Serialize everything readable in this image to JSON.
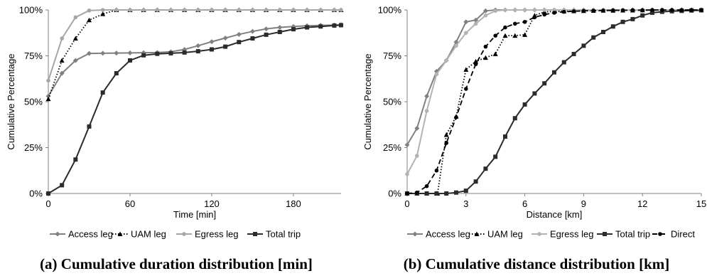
{
  "chart_data": [
    {
      "type": "line",
      "caption": "(a) Cumulative duration distribution [min]",
      "xlabel": "Time [min]",
      "ylabel": "Cumulative Percentage",
      "xlim": [
        0,
        215
      ],
      "ylim": [
        0,
        100
      ],
      "xticks": [
        0,
        60,
        120,
        180
      ],
      "xtick_labels": [
        "0",
        "60",
        "120",
        "180"
      ],
      "yticks": [
        0,
        25,
        50,
        75,
        100
      ],
      "ytick_labels": [
        "0%",
        "25%",
        "50%",
        "75%",
        "100%"
      ],
      "grid": false,
      "legend": "bottom",
      "series": [
        {
          "name": "Access leg",
          "color": "#808080",
          "dash": "solid",
          "marker": "diamond",
          "x": [
            0,
            10,
            20,
            30,
            40,
            50,
            60,
            70,
            80,
            90,
            100,
            110,
            120,
            130,
            140,
            150,
            160,
            170,
            180,
            190,
            200,
            210,
            215
          ],
          "y": [
            53,
            65.5,
            72.5,
            76.3,
            76.4,
            76.5,
            76.6,
            76.7,
            76.8,
            77.2,
            78.5,
            80.5,
            82.7,
            84.7,
            86.7,
            88.3,
            89.7,
            90.5,
            91,
            91.4,
            91.6,
            91.8,
            92
          ]
        },
        {
          "name": "UAM leg",
          "color": "#000000",
          "dash": "dotted",
          "marker": "triangle",
          "x": [
            0,
            10,
            20,
            30,
            40,
            50,
            60,
            70,
            80,
            90,
            100,
            110,
            120,
            130,
            140,
            150,
            160,
            170,
            180,
            190,
            200,
            210,
            215
          ],
          "y": [
            51.5,
            72.5,
            84.5,
            94.5,
            97.8,
            100,
            100,
            100,
            100,
            100,
            100,
            100,
            100,
            100,
            100,
            100,
            100,
            100,
            100,
            100,
            100,
            100,
            100
          ]
        },
        {
          "name": "Egress leg",
          "color": "#a6a6a6",
          "dash": "solid",
          "marker": "circle",
          "x": [
            0,
            10,
            20,
            30,
            40,
            50,
            60,
            70,
            80,
            90,
            100,
            110,
            120,
            130,
            140,
            150,
            160,
            170,
            180,
            190,
            200,
            210,
            215
          ],
          "y": [
            61.5,
            84.5,
            96,
            99.7,
            100,
            100,
            100,
            100,
            100,
            100,
            100,
            100,
            100,
            100,
            100,
            100,
            100,
            100,
            100,
            100,
            100,
            100,
            100
          ]
        },
        {
          "name": "Total trip",
          "color": "#2b2b2b",
          "dash": "solid",
          "marker": "square",
          "x": [
            0,
            10,
            20,
            30,
            40,
            50,
            60,
            70,
            80,
            90,
            100,
            110,
            120,
            130,
            140,
            150,
            160,
            170,
            180,
            190,
            200,
            210,
            215
          ],
          "y": [
            0,
            4.5,
            18.5,
            36.5,
            55,
            65.5,
            72.5,
            75.3,
            76.1,
            76.4,
            76.8,
            77.5,
            78.5,
            80,
            82.5,
            84.5,
            86.5,
            88,
            89.5,
            90.5,
            91,
            91.5,
            91.7
          ]
        }
      ]
    },
    {
      "type": "line",
      "caption": "(b) Cumulative distance distribution [km]",
      "xlabel": "Distance [km]",
      "ylabel": "Cumulative Percentage",
      "xlim": [
        0,
        15
      ],
      "ylim": [
        0,
        100
      ],
      "xticks": [
        0,
        3,
        6,
        9,
        12,
        15
      ],
      "xtick_labels": [
        "0",
        "3",
        "6",
        "9",
        "12",
        "15"
      ],
      "yticks": [
        0,
        25,
        50,
        75,
        100
      ],
      "ytick_labels": [
        "0%",
        "25%",
        "50%",
        "75%",
        "100%"
      ],
      "grid": false,
      "legend": "bottom",
      "series": [
        {
          "name": "Access leg",
          "color": "#808080",
          "dash": "solid",
          "marker": "diamond",
          "x": [
            0,
            0.5,
            1,
            1.5,
            2,
            2.5,
            3,
            3.5,
            4,
            4.5,
            5,
            5.5,
            6,
            6.5,
            7,
            7.5,
            8,
            8.5,
            9,
            9.5,
            10,
            10.5,
            11,
            11.5,
            12,
            12.5,
            13,
            13.5,
            14,
            14.5,
            15
          ],
          "y": [
            26.5,
            35.5,
            53,
            66.5,
            72.5,
            82.5,
            93.5,
            94.5,
            99.5,
            100,
            100,
            100,
            100,
            100,
            100,
            100,
            100,
            100,
            100,
            100,
            100,
            100,
            100,
            100,
            100,
            100,
            100,
            100,
            100,
            100,
            100
          ]
        },
        {
          "name": "UAM leg",
          "color": "#000000",
          "dash": "dotted",
          "marker": "triangle",
          "x": [
            0,
            0.5,
            1,
            1.5,
            1.55,
            2,
            2.5,
            3,
            3.5,
            4,
            4.5,
            5,
            5.5,
            6,
            6.5,
            7,
            7.5,
            8,
            8.5,
            9,
            9.5,
            10,
            10.5,
            11,
            11.5,
            12,
            12.5,
            13,
            13.5,
            14,
            14.5,
            15
          ],
          "y": [
            0,
            0,
            0,
            0,
            0,
            32,
            42,
            67.5,
            72,
            74,
            76,
            86,
            86,
            86.5,
            97,
            99,
            99.2,
            99.3,
            99.4,
            99.5,
            99.6,
            99.7,
            99.7,
            99.8,
            99.8,
            99.9,
            99.9,
            99.9,
            100,
            100,
            100,
            100
          ]
        },
        {
          "name": "Egress leg",
          "color": "#b3b3b3",
          "dash": "solid",
          "marker": "circle",
          "x": [
            0,
            0.5,
            1,
            1.5,
            2,
            2.5,
            3,
            3.5,
            4,
            4.5,
            5,
            5.5,
            6,
            6.5,
            7,
            7.5,
            8,
            8.5,
            9,
            9.5,
            10,
            10.5,
            11,
            11.5,
            12,
            12.5,
            13,
            13.5,
            14,
            14.5,
            15
          ],
          "y": [
            10.5,
            20.5,
            45,
            65,
            72.5,
            80.5,
            87.5,
            92.5,
            97,
            99.5,
            100,
            100,
            100,
            100,
            100,
            100,
            100,
            100,
            100,
            100,
            100,
            100,
            100,
            100,
            100,
            100,
            100,
            100,
            100,
            100,
            100
          ]
        },
        {
          "name": "Total trip",
          "color": "#2b2b2b",
          "dash": "solid",
          "marker": "square",
          "x": [
            0,
            0.5,
            1,
            1.5,
            2,
            2.5,
            3,
            3.5,
            4,
            4.5,
            5,
            5.5,
            6,
            6.5,
            7,
            7.5,
            8,
            8.5,
            9,
            9.5,
            10,
            10.5,
            11,
            11.5,
            12,
            12.5,
            13,
            13.5,
            14,
            14.5,
            15
          ],
          "y": [
            0,
            0,
            0,
            0,
            0,
            0.5,
            1.5,
            6.5,
            13.5,
            20,
            31,
            41,
            48.5,
            54.5,
            60,
            66,
            71.5,
            76,
            80.5,
            85,
            88,
            91,
            93.5,
            95,
            97,
            98.5,
            99,
            99.3,
            99.5,
            99.7,
            99.8
          ]
        },
        {
          "name": "Direct",
          "color": "#000000",
          "dash": "dashed",
          "marker": "circle",
          "x": [
            0,
            0.5,
            1,
            1.5,
            2,
            2.5,
            3,
            3.5,
            4,
            4.5,
            5,
            5.5,
            6,
            6.5,
            7,
            7.5,
            8,
            8.5,
            9,
            9.5,
            10,
            10.5,
            11,
            11.5,
            12,
            12.5,
            13,
            13.5,
            14,
            14.5,
            15
          ],
          "y": [
            0,
            0.5,
            4,
            12.5,
            27.5,
            41.5,
            57,
            70.5,
            80,
            86,
            90.5,
            92.5,
            93.5,
            96,
            97.5,
            98.5,
            99,
            99.3,
            99.5,
            99.6,
            99.7,
            99.8,
            99.8,
            99.9,
            99.9,
            100,
            100,
            100,
            100,
            100,
            100
          ]
        }
      ]
    }
  ]
}
